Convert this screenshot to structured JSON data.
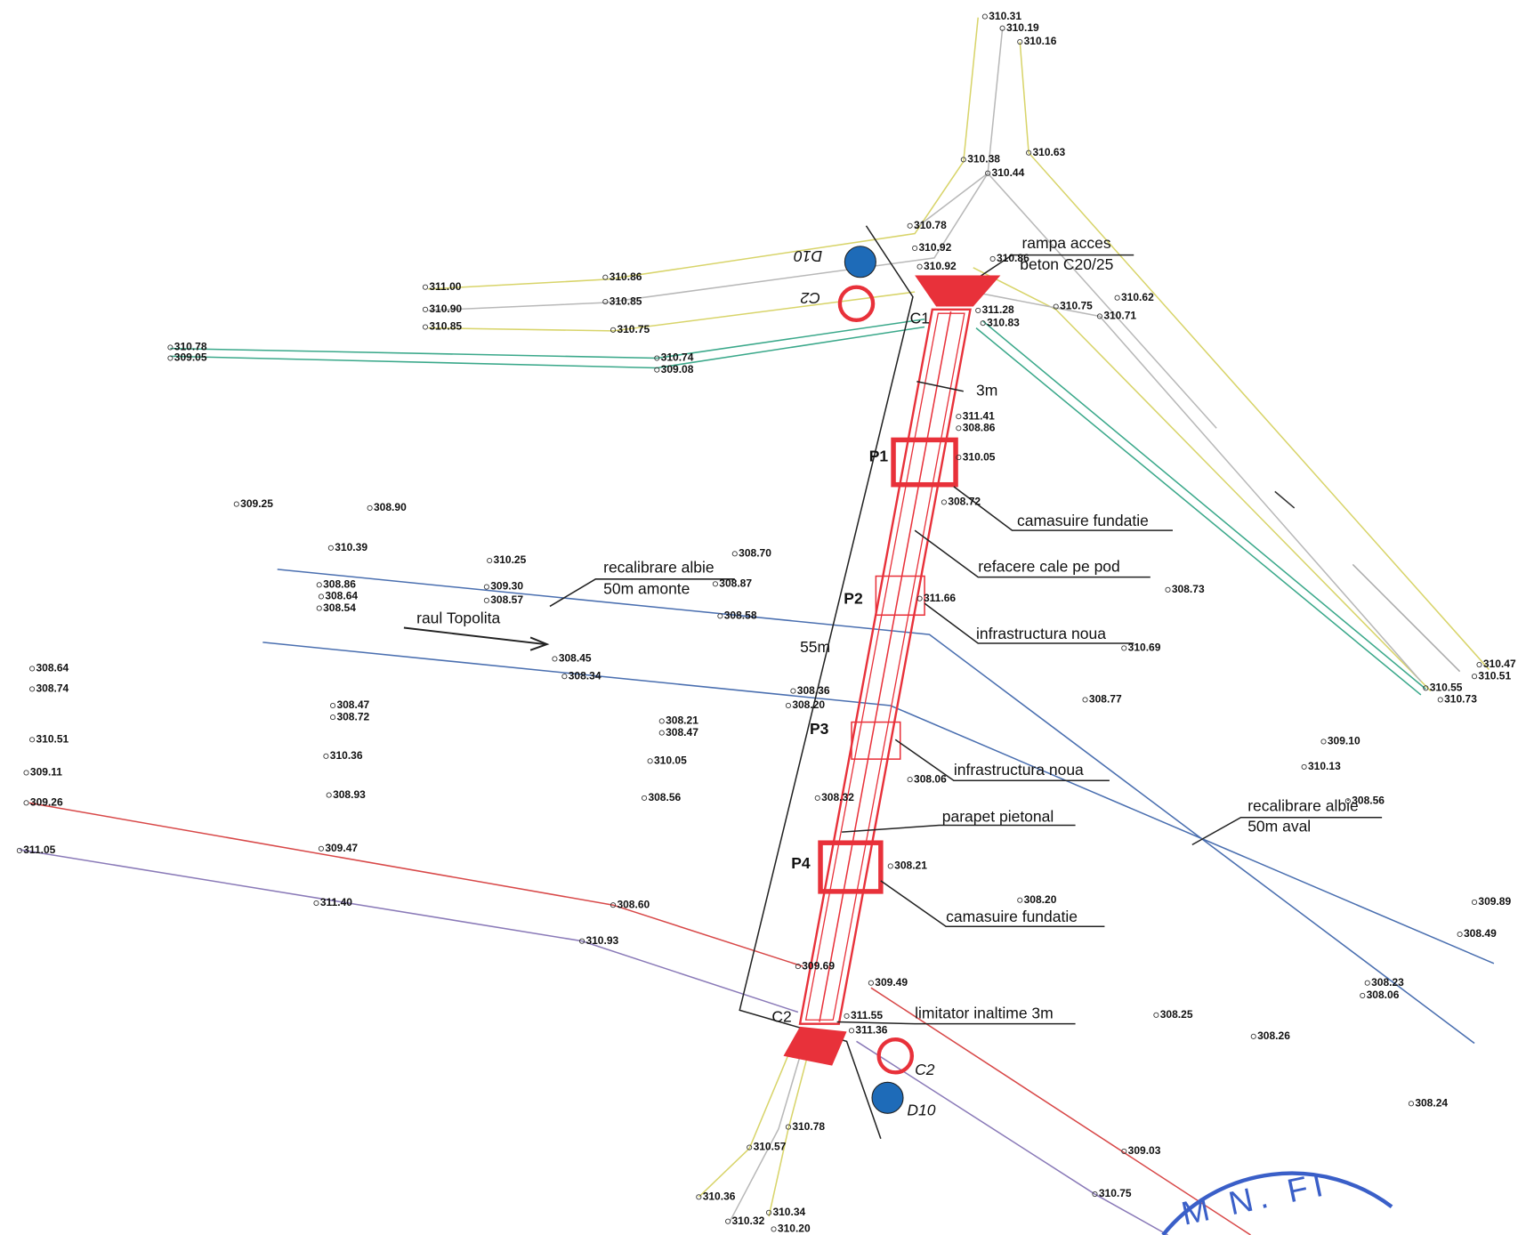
{
  "elevations": [
    "310.31",
    "310.19",
    "310.16",
    "310.63",
    "310.38",
    "310.44",
    "310.78",
    "310.92",
    "310.92",
    "310.86",
    "311.00",
    "310.86",
    "310.90",
    "310.85",
    "310.85",
    "310.75",
    "310.78",
    "309.05",
    "310.74",
    "309.08",
    "311.28",
    "310.83",
    "310.62",
    "310.75",
    "310.71",
    "311.41",
    "308.86",
    "310.05",
    "308.72",
    "309.25",
    "308.90",
    "310.39",
    "310.25",
    "308.70",
    "308.86",
    "308.64",
    "308.54",
    "309.30",
    "308.57",
    "308.87",
    "308.58",
    "308.73",
    "311.66",
    "310.69",
    "308.45",
    "308.34",
    "308.64",
    "308.74",
    "310.47",
    "310.51",
    "310.55",
    "310.73",
    "308.36",
    "308.20",
    "308.77",
    "308.47",
    "308.72",
    "308.21",
    "308.47",
    "310.51",
    "309.10",
    "310.36",
    "310.05",
    "310.13",
    "309.11",
    "308.06",
    "308.93",
    "308.56",
    "308.32",
    "309.26",
    "308.56",
    "311.05",
    "309.47",
    "308.21",
    "308.20",
    "311.40",
    "308.60",
    "309.89",
    "308.49",
    "310.93",
    "309.69",
    "309.49",
    "308.23",
    "308.06",
    "308.25",
    "308.26",
    "311.55",
    "311.36",
    "308.24",
    "310.78",
    "310.57",
    "309.03",
    "310.75",
    "310.36",
    "310.34",
    "310.32",
    "310.20"
  ],
  "annotations": [
    "rampa acces",
    "beton C20/25",
    "3m",
    "P1",
    "camasuire fundatie",
    "refacere cale pe pod",
    "recalibrare albie",
    "50m amonte",
    "P2",
    "raul Topolita",
    "infrastructura noua",
    "55m",
    "P3",
    "infrastructura noua",
    "parapet pietonal",
    "recalibrare albie",
    "50m aval",
    "P4",
    "camasuire fundatie",
    "limitator inaltime 3m",
    "C2",
    "D10",
    "C2",
    "D10",
    "C1",
    "C2"
  ],
  "stamp": "M N. FI"
}
